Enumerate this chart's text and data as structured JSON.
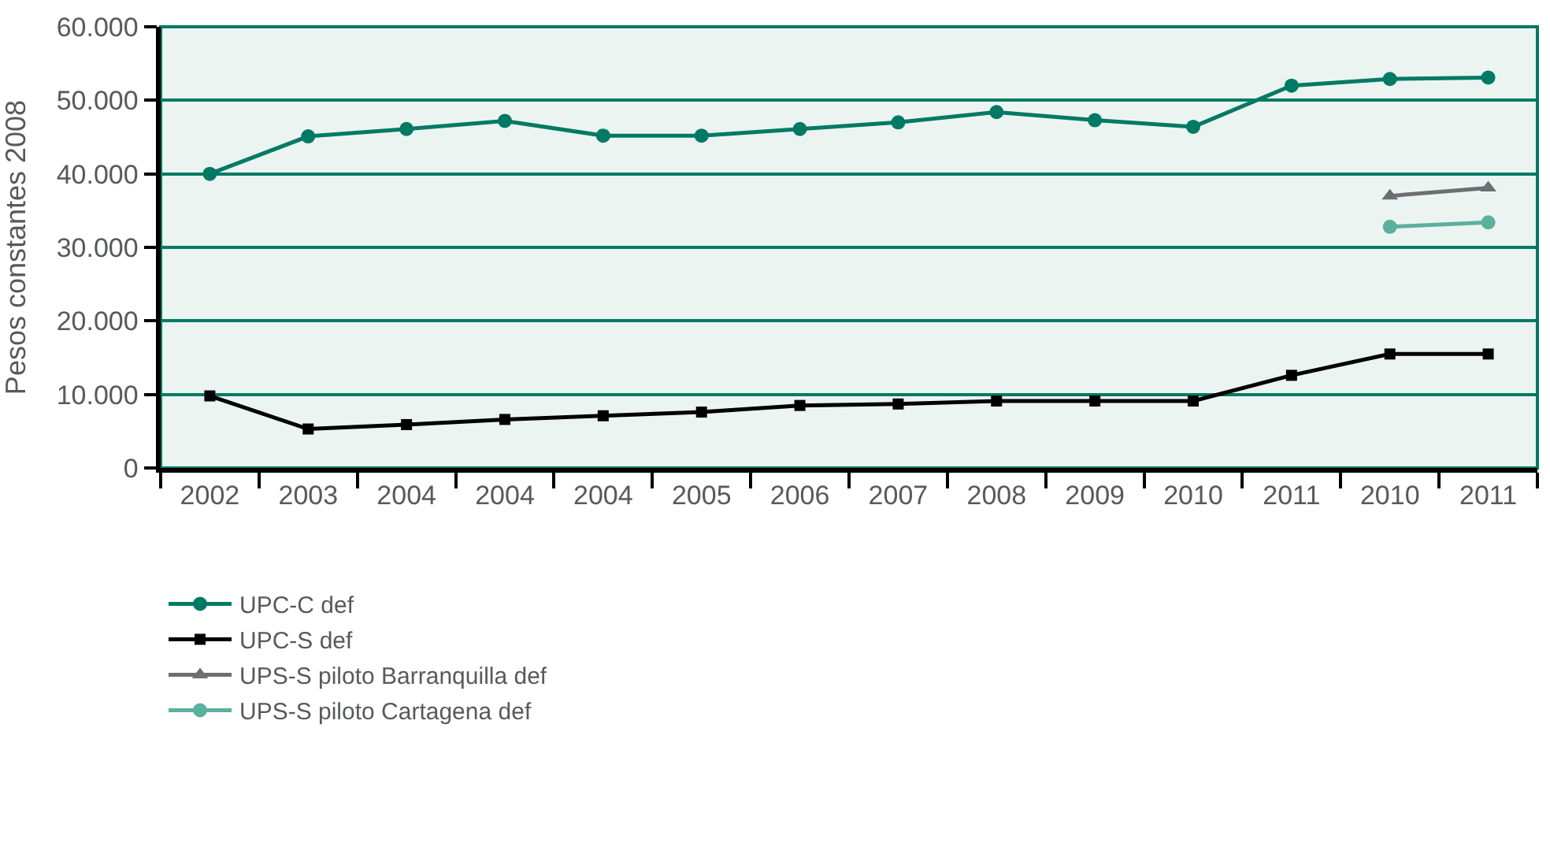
{
  "chart_data": {
    "type": "line",
    "ylabel": "Pesos constantes 2008",
    "categories": [
      "2002",
      "2003",
      "2004",
      "2004",
      "2004",
      "2005",
      "2006",
      "2007",
      "2008",
      "2009",
      "2010",
      "2011",
      "2010",
      "2011"
    ],
    "series": [
      {
        "name": "UPC-C def",
        "color": "#007a64",
        "marker": "circle",
        "values": [
          40000,
          45100,
          46100,
          47200,
          45200,
          45200,
          46100,
          47000,
          48400,
          47300,
          46400,
          52000,
          52900,
          53100
        ]
      },
      {
        "name": "UPC-S def",
        "color": "#000000",
        "marker": "square",
        "values": [
          9800,
          5300,
          5900,
          6600,
          7100,
          7600,
          8500,
          8700,
          9100,
          9100,
          9100,
          12600,
          15500,
          15500
        ]
      },
      {
        "name": "UPS-S piloto Barranquilla def",
        "color": "#6d6e71",
        "marker": "triangle",
        "values": [
          null,
          null,
          null,
          null,
          null,
          null,
          null,
          null,
          null,
          null,
          null,
          null,
          37000,
          38100
        ]
      },
      {
        "name": "UPS-S piloto Cartagena def",
        "color": "#5bb09e",
        "marker": "circle",
        "values": [
          null,
          null,
          null,
          null,
          null,
          null,
          null,
          null,
          null,
          null,
          null,
          null,
          32800,
          33400
        ]
      }
    ],
    "ylim": [
      0,
      60000
    ],
    "yticks": [
      {
        "value": 0,
        "label": "0"
      },
      {
        "value": 10000,
        "label": "10.000"
      },
      {
        "value": 20000,
        "label": "20.000"
      },
      {
        "value": 30000,
        "label": "30.000"
      },
      {
        "value": 40000,
        "label": "40.000"
      },
      {
        "value": 50000,
        "label": "50.000"
      },
      {
        "value": 60000,
        "label": "60.000"
      }
    ],
    "grid": "y",
    "legend": "bottom left",
    "line_style": "solid"
  }
}
